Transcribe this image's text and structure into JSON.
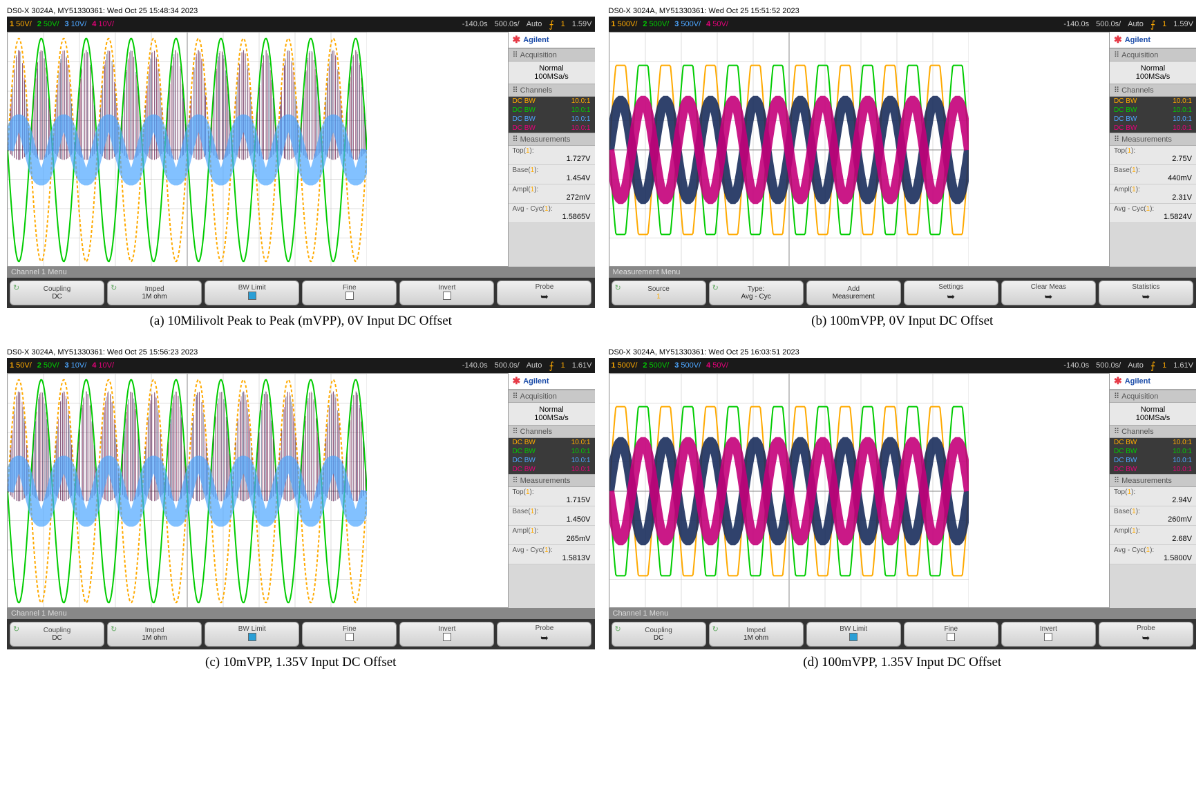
{
  "panels": [
    {
      "id": "a",
      "header": "DS0-X 3024A, MY51330361: Wed Oct 25 15:48:34 2023",
      "topbar": {
        "channels": [
          {
            "num": "1",
            "scale": "50V/",
            "color": "#ffaa00"
          },
          {
            "num": "2",
            "scale": "50V/",
            "color": "#00cc00"
          },
          {
            "num": "3",
            "scale": "10V/",
            "color": "#4da6ff"
          },
          {
            "num": "4",
            "scale": "10V/",
            "color": "#e6007a"
          }
        ],
        "time_offset": "-140.0s",
        "timebase": "500.0s/",
        "mode": "Auto",
        "trig_ch": "1",
        "trig_level": "1.59V"
      },
      "brand": "Agilent",
      "acquisition": {
        "mode": "Normal",
        "rate": "100MSa/s"
      },
      "channel_list": [
        {
          "label": "DC BW",
          "ratio": "10.0:1",
          "color": "#ffaa00"
        },
        {
          "label": "DC BW",
          "ratio": "10.0:1",
          "color": "#00cc00"
        },
        {
          "label": "DC BW",
          "ratio": "10.0:1",
          "color": "#4da6ff"
        },
        {
          "label": "DC BW",
          "ratio": "10.0:1",
          "color": "#e6007a"
        }
      ],
      "measurements": [
        {
          "label": "Top(",
          "ch": "1",
          "suffix": "):",
          "value": "1.727V"
        },
        {
          "label": "Base(",
          "ch": "1",
          "suffix": "):",
          "value": "1.454V"
        },
        {
          "label": "Ampl(",
          "ch": "1",
          "suffix": "):",
          "value": "272mV"
        },
        {
          "label": "Avg - Cyc(",
          "ch": "1",
          "suffix": "):",
          "value": "1.5865V"
        }
      ],
      "menu": "Channel 1 Menu",
      "softkeys": [
        {
          "label": "Coupling",
          "value": "DC",
          "refresh": true
        },
        {
          "label": "Imped",
          "value": "1M ohm",
          "refresh": true
        },
        {
          "label": "BW Limit",
          "checkbox": "on"
        },
        {
          "label": "Fine",
          "checkbox": "off"
        },
        {
          "label": "Invert",
          "checkbox": "off"
        },
        {
          "label": "Probe",
          "arrow": true
        }
      ],
      "caption": "(a) 10Milivolt Peak to Peak (mVPP), 0V Input DC Offset",
      "waveform": {
        "type": "dense",
        "background": "#ffffff",
        "cycles": 8,
        "grid_color": "#bbb",
        "traces": [
          {
            "color": "#ffaa00",
            "amp": 0.95,
            "phase": 0,
            "width": 2,
            "style": "line"
          },
          {
            "color": "#00cc00",
            "amp": 0.95,
            "phase": 3.14,
            "width": 2,
            "style": "line"
          },
          {
            "color": "#1a2d5c",
            "amp": 0.85,
            "phase": 0,
            "width": 1,
            "style": "noise",
            "density": 0.9
          },
          {
            "color": "#8a1a4a",
            "amp": 0.85,
            "phase": 3.14,
            "width": 1,
            "style": "noise",
            "density": 0.9
          },
          {
            "color": "#4da6ff",
            "amp": 0.25,
            "phase": 0,
            "width": 3,
            "style": "band"
          }
        ]
      }
    },
    {
      "id": "b",
      "header": "DS0-X 3024A, MY51330361: Wed Oct 25 15:51:52 2023",
      "topbar": {
        "channels": [
          {
            "num": "1",
            "scale": "500V/",
            "color": "#ffaa00"
          },
          {
            "num": "2",
            "scale": "500V/",
            "color": "#00cc00"
          },
          {
            "num": "3",
            "scale": "500V/",
            "color": "#4da6ff"
          },
          {
            "num": "4",
            "scale": "50V/",
            "color": "#e6007a"
          }
        ],
        "time_offset": "-140.0s",
        "timebase": "500.0s/",
        "mode": "Auto",
        "trig_ch": "1",
        "trig_level": "1.59V"
      },
      "brand": "Agilent",
      "acquisition": {
        "mode": "Normal",
        "rate": "100MSa/s"
      },
      "channel_list": [
        {
          "label": "DC BW",
          "ratio": "10.0:1",
          "color": "#ffaa00"
        },
        {
          "label": "DC BW",
          "ratio": "10.0:1",
          "color": "#00cc00"
        },
        {
          "label": "DC BW",
          "ratio": "10.0:1",
          "color": "#4da6ff"
        },
        {
          "label": "DC BW",
          "ratio": "10.0:1",
          "color": "#e6007a"
        }
      ],
      "measurements": [
        {
          "label": "Top(",
          "ch": "1",
          "suffix": "):",
          "value": "2.75V"
        },
        {
          "label": "Base(",
          "ch": "1",
          "suffix": "):",
          "value": "440mV"
        },
        {
          "label": "Ampl(",
          "ch": "1",
          "suffix": "):",
          "value": "2.31V"
        },
        {
          "label": "Avg - Cyc(",
          "ch": "1",
          "suffix": "):",
          "value": "1.5824V"
        }
      ],
      "menu": "Measurement Menu",
      "softkeys": [
        {
          "label": "Source",
          "value": "1",
          "refresh": true,
          "value_color": "#ffaa00"
        },
        {
          "label": "Type:",
          "value": "Avg - Cyc",
          "refresh": true
        },
        {
          "label": "Add",
          "value": "Measurement"
        },
        {
          "label": "Settings",
          "arrow": true
        },
        {
          "label": "Clear Meas",
          "arrow": true
        },
        {
          "label": "Statistics",
          "arrow": true
        }
      ],
      "caption": "(b) 100mVPP, 0V Input DC Offset",
      "waveform": {
        "type": "clipped",
        "background": "#ffffff",
        "cycles": 8,
        "grid_color": "#bbb",
        "traces": [
          {
            "color": "#ffaa00",
            "amp": 0.92,
            "phase": 0,
            "width": 2,
            "style": "clipped",
            "clip": 0.72
          },
          {
            "color": "#00cc00",
            "amp": 0.92,
            "phase": 3.14,
            "width": 2,
            "style": "clipped",
            "clip": 0.72
          },
          {
            "color": "#1a2d5c",
            "amp": 0.42,
            "phase": 0,
            "width": 14,
            "style": "thick"
          },
          {
            "color": "#c4007a",
            "amp": 0.42,
            "phase": 3.14,
            "width": 14,
            "style": "thick"
          }
        ]
      }
    },
    {
      "id": "c",
      "header": "DS0-X 3024A, MY51330361: Wed Oct 25 15:56:23 2023",
      "topbar": {
        "channels": [
          {
            "num": "1",
            "scale": "50V/",
            "color": "#ffaa00"
          },
          {
            "num": "2",
            "scale": "50V/",
            "color": "#00cc00"
          },
          {
            "num": "3",
            "scale": "10V/",
            "color": "#4da6ff"
          },
          {
            "num": "4",
            "scale": "10V/",
            "color": "#e6007a"
          }
        ],
        "time_offset": "-140.0s",
        "timebase": "500.0s/",
        "mode": "Auto",
        "trig_ch": "1",
        "trig_level": "1.61V"
      },
      "brand": "Agilent",
      "acquisition": {
        "mode": "Normal",
        "rate": "100MSa/s"
      },
      "channel_list": [
        {
          "label": "DC BW",
          "ratio": "10.0:1",
          "color": "#ffaa00"
        },
        {
          "label": "DC BW",
          "ratio": "10.0:1",
          "color": "#00cc00"
        },
        {
          "label": "DC BW",
          "ratio": "10.0:1",
          "color": "#4da6ff"
        },
        {
          "label": "DC BW",
          "ratio": "10.0:1",
          "color": "#e6007a"
        }
      ],
      "measurements": [
        {
          "label": "Top(",
          "ch": "1",
          "suffix": "):",
          "value": "1.715V"
        },
        {
          "label": "Base(",
          "ch": "1",
          "suffix": "):",
          "value": "1.450V"
        },
        {
          "label": "Ampl(",
          "ch": "1",
          "suffix": "):",
          "value": "265mV"
        },
        {
          "label": "Avg - Cyc(",
          "ch": "1",
          "suffix": "):",
          "value": "1.5813V"
        }
      ],
      "menu": "Channel 1 Menu",
      "softkeys": [
        {
          "label": "Coupling",
          "value": "DC",
          "refresh": true
        },
        {
          "label": "Imped",
          "value": "1M ohm",
          "refresh": true
        },
        {
          "label": "BW Limit",
          "checkbox": "on"
        },
        {
          "label": "Fine",
          "checkbox": "off"
        },
        {
          "label": "Invert",
          "checkbox": "off"
        },
        {
          "label": "Probe",
          "arrow": true
        }
      ],
      "caption": "(c) 10mVPP, 1.35V Input DC Offset",
      "waveform": {
        "type": "dense",
        "background": "#ffffff",
        "cycles": 8,
        "grid_color": "#bbb",
        "traces": [
          {
            "color": "#ffaa00",
            "amp": 0.95,
            "phase": 0,
            "width": 2,
            "style": "line"
          },
          {
            "color": "#00cc00",
            "amp": 0.95,
            "phase": 3.14,
            "width": 2,
            "style": "line"
          },
          {
            "color": "#1a2d5c",
            "amp": 0.85,
            "phase": 0,
            "width": 1,
            "style": "noise",
            "density": 0.9
          },
          {
            "color": "#8a1a4a",
            "amp": 0.85,
            "phase": 3.14,
            "width": 1,
            "style": "noise",
            "density": 0.9
          },
          {
            "color": "#4da6ff",
            "amp": 0.25,
            "phase": 0,
            "width": 3,
            "style": "band"
          }
        ]
      }
    },
    {
      "id": "d",
      "header": "DS0-X 3024A, MY51330361: Wed Oct 25 16:03:51 2023",
      "topbar": {
        "channels": [
          {
            "num": "1",
            "scale": "500V/",
            "color": "#ffaa00"
          },
          {
            "num": "2",
            "scale": "500V/",
            "color": "#00cc00"
          },
          {
            "num": "3",
            "scale": "500V/",
            "color": "#4da6ff"
          },
          {
            "num": "4",
            "scale": "50V/",
            "color": "#e6007a"
          }
        ],
        "time_offset": "-140.0s",
        "timebase": "500.0s/",
        "mode": "Auto",
        "trig_ch": "1",
        "trig_level": "1.61V"
      },
      "brand": "Agilent",
      "acquisition": {
        "mode": "Normal",
        "rate": "100MSa/s"
      },
      "channel_list": [
        {
          "label": "DC BW",
          "ratio": "10.0:1",
          "color": "#ffaa00"
        },
        {
          "label": "DC BW",
          "ratio": "10.0:1",
          "color": "#00cc00"
        },
        {
          "label": "DC BW",
          "ratio": "10.0:1",
          "color": "#4da6ff"
        },
        {
          "label": "DC BW",
          "ratio": "10.0:1",
          "color": "#e6007a"
        }
      ],
      "measurements": [
        {
          "label": "Top(",
          "ch": "1",
          "suffix": "):",
          "value": "2.94V"
        },
        {
          "label": "Base(",
          "ch": "1",
          "suffix": "):",
          "value": "260mV"
        },
        {
          "label": "Ampl(",
          "ch": "1",
          "suffix": "):",
          "value": "2.68V"
        },
        {
          "label": "Avg - Cyc(",
          "ch": "1",
          "suffix": "):",
          "value": "1.5800V"
        }
      ],
      "menu": "Channel 1 Menu",
      "softkeys": [
        {
          "label": "Coupling",
          "value": "DC",
          "refresh": true
        },
        {
          "label": "Imped",
          "value": "1M ohm",
          "refresh": true
        },
        {
          "label": "BW Limit",
          "checkbox": "on"
        },
        {
          "label": "Fine",
          "checkbox": "off"
        },
        {
          "label": "Invert",
          "checkbox": "off"
        },
        {
          "label": "Probe",
          "arrow": true
        }
      ],
      "caption": "(d) 100mVPP, 1.35V Input DC Offset",
      "waveform": {
        "type": "clipped",
        "background": "#ffffff",
        "cycles": 8,
        "grid_color": "#bbb",
        "traces": [
          {
            "color": "#ffaa00",
            "amp": 0.92,
            "phase": 0,
            "width": 2,
            "style": "clipped",
            "clip": 0.72
          },
          {
            "color": "#00cc00",
            "amp": 0.92,
            "phase": 3.14,
            "width": 2,
            "style": "clipped",
            "clip": 0.72
          },
          {
            "color": "#1a2d5c",
            "amp": 0.42,
            "phase": 0,
            "width": 14,
            "style": "thick"
          },
          {
            "color": "#c4007a",
            "amp": 0.42,
            "phase": 3.14,
            "width": 14,
            "style": "thick"
          }
        ]
      }
    }
  ],
  "section_headers": {
    "acquisition": "Acquisition",
    "channels": "Channels",
    "measurements": "Measurements"
  }
}
